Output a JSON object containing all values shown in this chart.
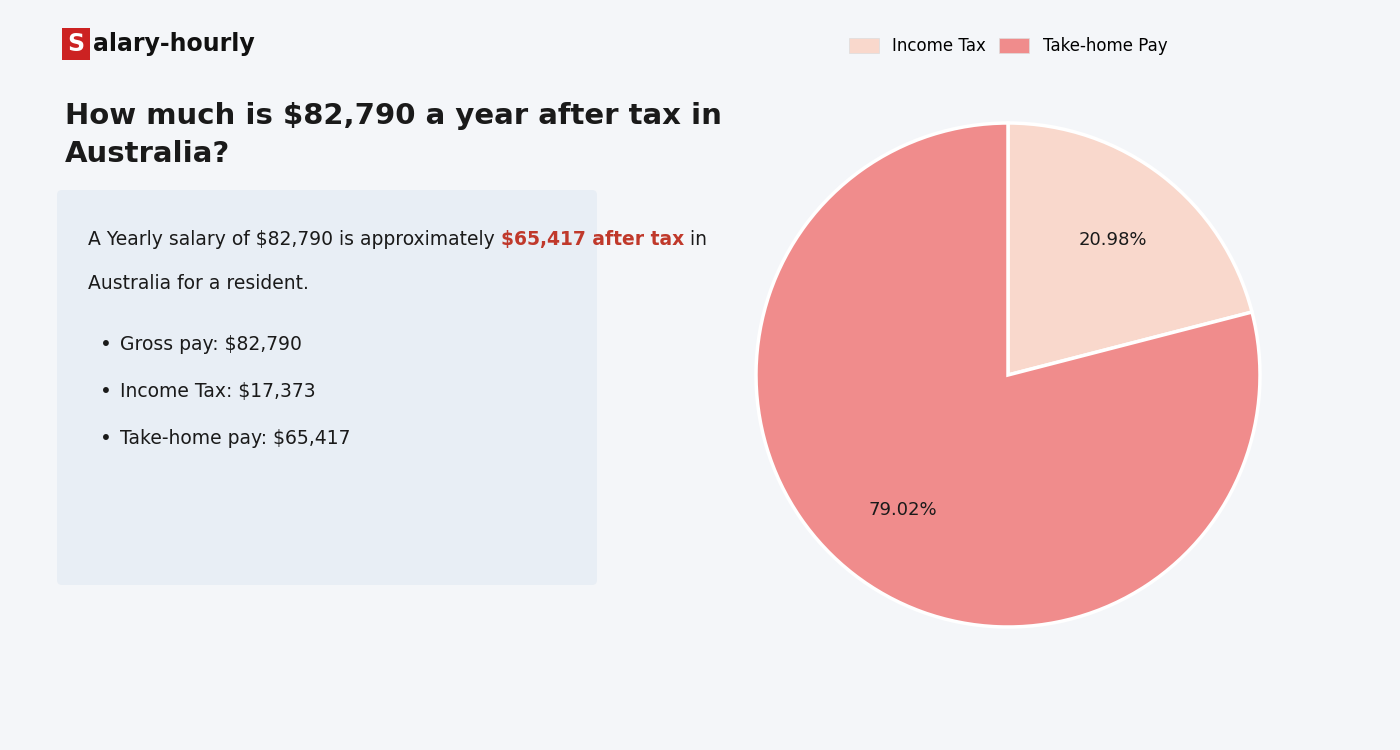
{
  "background_color": "#f4f6f9",
  "logo_box_color": "#cc2222",
  "logo_text_color": "#111111",
  "heading_line1": "How much is $82,790 a year after tax in",
  "heading_line2": "Australia?",
  "heading_fontsize": 21,
  "heading_color": "#1a1a1a",
  "info_box_color": "#e8eef5",
  "description_plain1": "A Yearly salary of $82,790 is approximately ",
  "description_highlight": "$65,417 after tax",
  "description_plain2": " in",
  "description_line2": "Australia for a resident.",
  "highlight_color": "#c0392b",
  "description_fontsize": 13.5,
  "bullet_items": [
    "Gross pay: $82,790",
    "Income Tax: $17,373",
    "Take-home pay: $65,417"
  ],
  "bullet_fontsize": 13.5,
  "pie_values": [
    20.98,
    79.02
  ],
  "pie_colors": [
    "#f9d8cc",
    "#f08c8c"
  ],
  "pie_legend_labels": [
    "Income Tax",
    "Take-home Pay"
  ],
  "pie_pct_labels": [
    "20.98%",
    "79.02%"
  ],
  "pie_fontsize": 13,
  "legend_fontsize": 12
}
